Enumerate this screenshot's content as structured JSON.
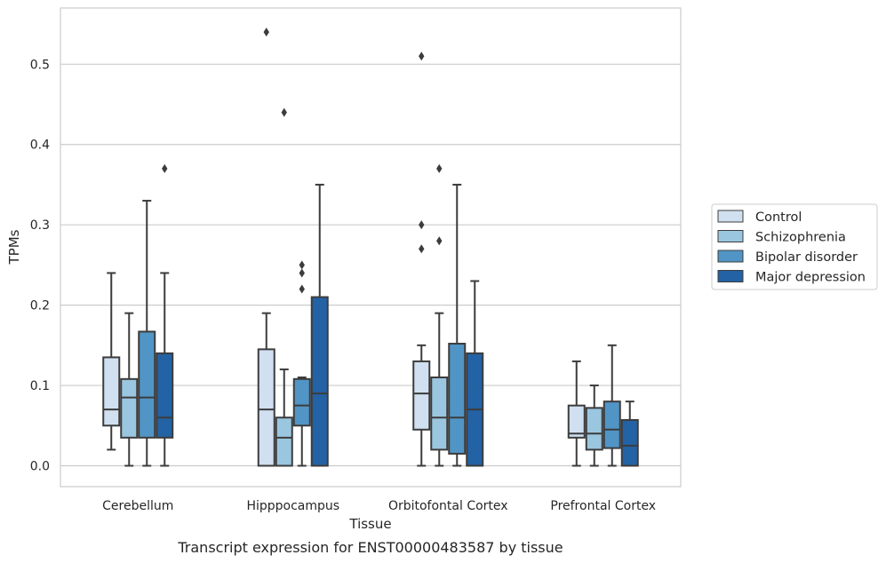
{
  "chart_data": {
    "type": "box",
    "caption": "Transcript expression for ENST00000483587 by tissue",
    "xlabel": "Tissue",
    "ylabel": "TPMs",
    "ylim": [
      -0.026,
      0.57
    ],
    "yticks": [
      "0.0",
      "0.1",
      "0.2",
      "0.3",
      "0.4",
      "0.5"
    ],
    "grid": "horizontal",
    "legend_position": "right",
    "categories": [
      "Cerebellum",
      "Hipppocampus",
      "Orbitofontal Cortex",
      "Prefrontal Cortex"
    ],
    "series": [
      {
        "name": "Control",
        "color": "#d0e0f1",
        "boxes": [
          {
            "whisker_low": 0.02,
            "q1": 0.05,
            "median": 0.07,
            "q3": 0.135,
            "whisker_high": 0.24,
            "outliers": []
          },
          {
            "whisker_low": 0.0,
            "q1": 0.0,
            "median": 0.07,
            "q3": 0.145,
            "whisker_high": 0.19,
            "outliers": [
              0.54
            ]
          },
          {
            "whisker_low": 0.0,
            "q1": 0.045,
            "median": 0.09,
            "q3": 0.13,
            "whisker_high": 0.15,
            "outliers": [
              0.51,
              0.3,
              0.27
            ]
          },
          {
            "whisker_low": 0.0,
            "q1": 0.035,
            "median": 0.04,
            "q3": 0.075,
            "whisker_high": 0.13,
            "outliers": []
          }
        ]
      },
      {
        "name": "Schizophrenia",
        "color": "#9bc6df",
        "boxes": [
          {
            "whisker_low": 0.0,
            "q1": 0.035,
            "median": 0.085,
            "q3": 0.108,
            "whisker_high": 0.19,
            "outliers": []
          },
          {
            "whisker_low": 0.0,
            "q1": 0.0,
            "median": 0.035,
            "q3": 0.06,
            "whisker_high": 0.12,
            "outliers": [
              0.44
            ]
          },
          {
            "whisker_low": 0.0,
            "q1": 0.02,
            "median": 0.06,
            "q3": 0.11,
            "whisker_high": 0.19,
            "outliers": [
              0.37,
              0.28
            ]
          },
          {
            "whisker_low": 0.0,
            "q1": 0.02,
            "median": 0.04,
            "q3": 0.072,
            "whisker_high": 0.1,
            "outliers": []
          }
        ]
      },
      {
        "name": "Bipolar disorder",
        "color": "#5195c6",
        "boxes": [
          {
            "whisker_low": 0.0,
            "q1": 0.035,
            "median": 0.085,
            "q3": 0.167,
            "whisker_high": 0.33,
            "outliers": []
          },
          {
            "whisker_low": 0.0,
            "q1": 0.05,
            "median": 0.075,
            "q3": 0.108,
            "whisker_high": 0.11,
            "outliers": [
              0.25,
              0.24,
              0.22
            ]
          },
          {
            "whisker_low": 0.0,
            "q1": 0.015,
            "median": 0.06,
            "q3": 0.152,
            "whisker_high": 0.35,
            "outliers": []
          },
          {
            "whisker_low": 0.0,
            "q1": 0.022,
            "median": 0.045,
            "q3": 0.08,
            "whisker_high": 0.15,
            "outliers": []
          }
        ]
      },
      {
        "name": "Major depression",
        "color": "#2362a4",
        "boxes": [
          {
            "whisker_low": 0.0,
            "q1": 0.035,
            "median": 0.06,
            "q3": 0.14,
            "whisker_high": 0.24,
            "outliers": [
              0.37
            ]
          },
          {
            "whisker_low": 0.0,
            "q1": 0.0,
            "median": 0.09,
            "q3": 0.21,
            "whisker_high": 0.35,
            "outliers": []
          },
          {
            "whisker_low": 0.0,
            "q1": 0.0,
            "median": 0.07,
            "q3": 0.14,
            "whisker_high": 0.23,
            "outliers": []
          },
          {
            "whisker_low": 0.0,
            "q1": 0.0,
            "median": 0.025,
            "q3": 0.057,
            "whisker_high": 0.08,
            "outliers": []
          }
        ]
      }
    ]
  }
}
